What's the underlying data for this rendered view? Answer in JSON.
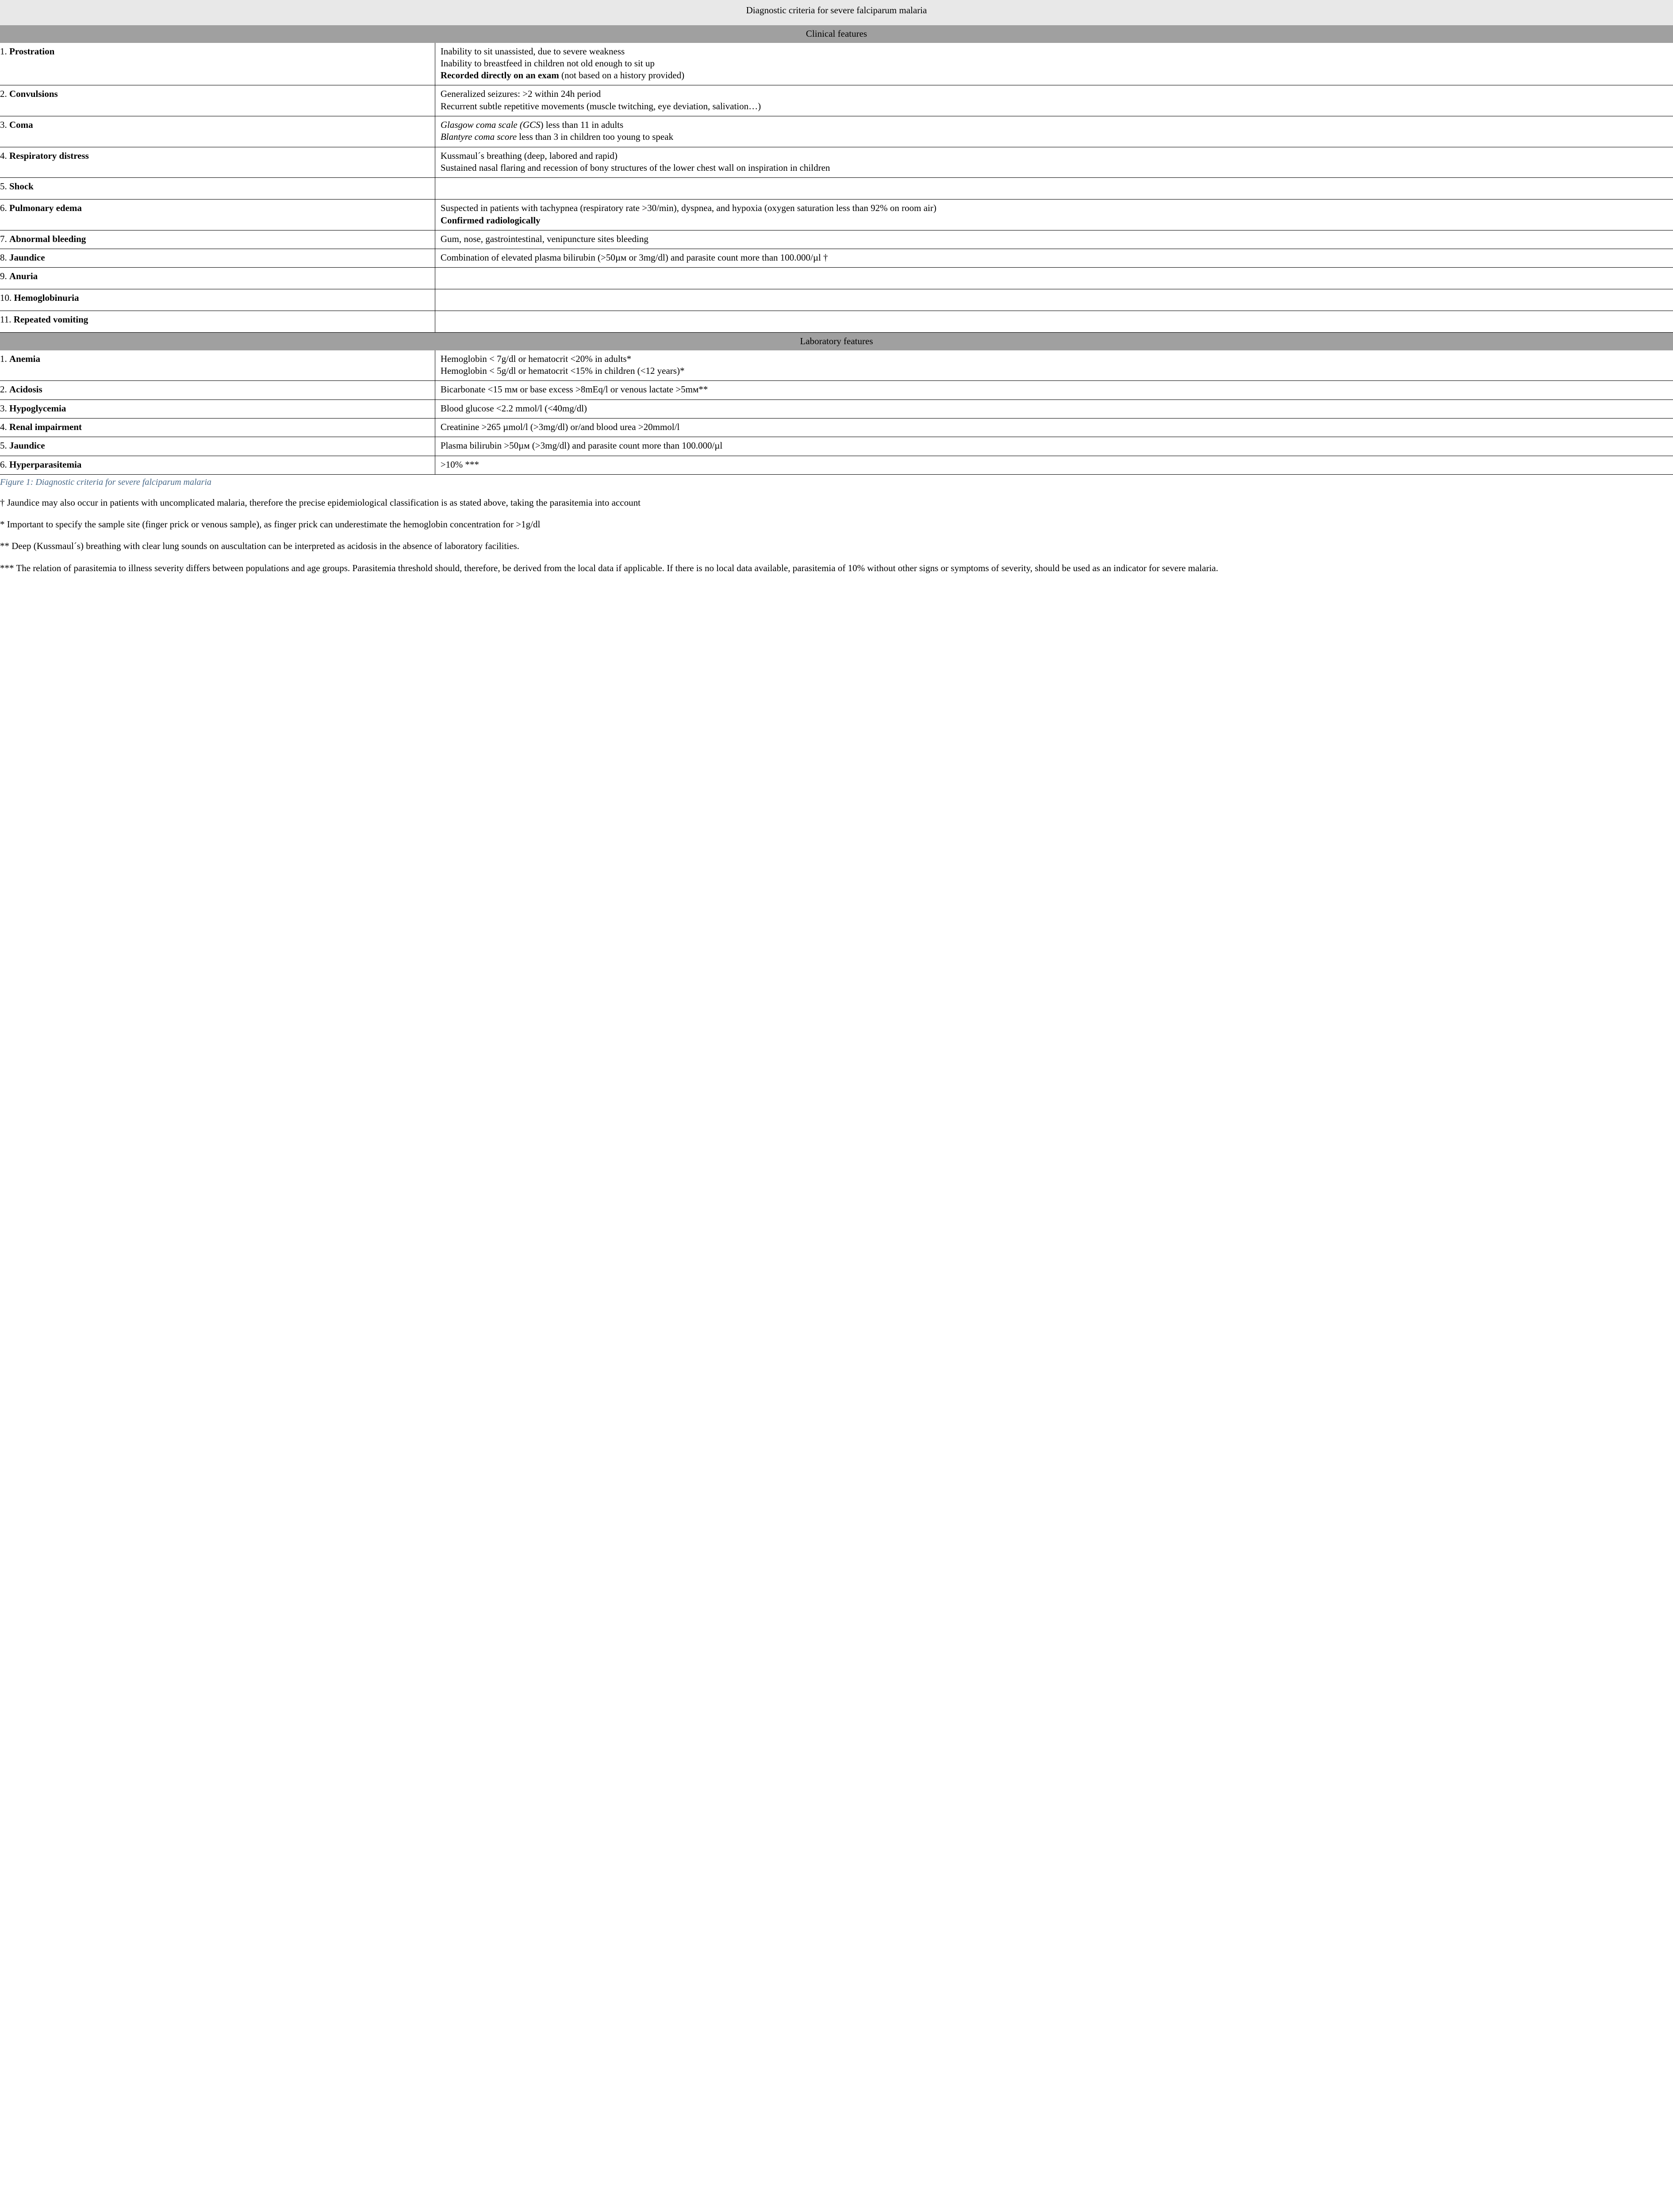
{
  "title": "Diagnostic criteria for severe falciparum malaria",
  "sections": {
    "clinical": {
      "header": "Clinical features",
      "rows": [
        {
          "num": "1.",
          "label": "Prostration",
          "lines": [
            {
              "text": "Inability to sit unassisted, due to severe weakness"
            },
            {
              "text": "Inability to breastfeed in children not old enough to sit up"
            },
            {
              "bold_prefix": "Recorded directly on an exam",
              "rest": " (not based on a history provided)"
            }
          ]
        },
        {
          "num": "2.",
          "label": "Convulsions",
          "lines": [
            {
              "text": "Generalized seizures: >2 within 24h period"
            },
            {
              "text": "Recurrent subtle repetitive movements (muscle twitching, eye deviation, salivation…)"
            }
          ]
        },
        {
          "num": "3.",
          "label": "Coma",
          "lines": [
            {
              "italic_prefix": "Glasgow coma scale (GCS",
              "rest": ") less than 11 in adults"
            },
            {
              "italic_prefix": "Blantyre coma score",
              "rest": " less than 3 in children too young to speak"
            }
          ]
        },
        {
          "num": "4.",
          "label": "Respiratory distress",
          "lines": [
            {
              "text": "Kussmaul´s breathing (deep, labored and rapid)"
            },
            {
              "text": "Sustained nasal flaring and recession of bony structures of the lower chest wall on inspiration in children"
            }
          ]
        },
        {
          "num": "5.",
          "label": "Shock",
          "lines": []
        },
        {
          "num": "6.",
          "label": "Pulmonary edema",
          "lines": [
            {
              "text": "Suspected in patients with tachypnea (respiratory rate >30/min), dyspnea, and hypoxia (oxygen saturation less than 92% on room air)"
            },
            {
              "bold_prefix": "Confirmed radiologically",
              "rest": ""
            }
          ]
        },
        {
          "num": "7.",
          "label": "Abnormal bleeding",
          "lines": [
            {
              "text": "Gum, nose, gastrointestinal, venipuncture sites bleeding"
            }
          ]
        },
        {
          "num": "8.",
          "label": "Jaundice",
          "lines": [
            {
              "text": "Combination of elevated plasma bilirubin (>50µм or 3mg/dl) and parasite count more than 100.000/µl †"
            }
          ]
        },
        {
          "num": "9.",
          "label": "Anuria",
          "lines": []
        },
        {
          "num": "10.",
          "label": "Hemoglobinuria",
          "lines": []
        },
        {
          "num": "11.",
          "label": "Repeated vomiting",
          "lines": []
        }
      ]
    },
    "laboratory": {
      "header": "Laboratory features",
      "rows": [
        {
          "num": "1.",
          "label": "Anemia",
          "lines": [
            {
              "text": "Hemoglobin < 7g/dl or hematocrit <20%  in adults*"
            },
            {
              "text": "Hemoglobin < 5g/dl or hematocrit <15% in children (<12 years)*"
            }
          ]
        },
        {
          "num": "2.",
          "label": "Acidosis",
          "lines": [
            {
              "text": "Bicarbonate <15 mм or base excess >8mEq/l or venous lactate >5mм**"
            }
          ]
        },
        {
          "num": "3.",
          "label": "Hypoglycemia",
          "lines": [
            {
              "text": "Blood glucose <2.2 mmol/l (<40mg/dl)"
            }
          ]
        },
        {
          "num": "4.",
          "label": "Renal impairment",
          "lines": [
            {
              "text": "Creatinine >265 µmol/l (>3mg/dl) or/and blood urea >20mmol/l"
            }
          ]
        },
        {
          "num": "5.",
          "label": "Jaundice",
          "lines": [
            {
              "text": "Plasma bilirubin >50µм (>3mg/dl) and parasite count more than 100.000/µl"
            }
          ]
        },
        {
          "num": "6.",
          "label": "Hyperparasitemia",
          "lines": [
            {
              "text": ">10% ***"
            }
          ]
        }
      ]
    }
  },
  "caption": "Figure 1: Diagnostic criteria for severe falciparum malaria",
  "footnotes": [
    "† Jaundice may also occur in patients with uncomplicated malaria, therefore the precise epidemiological classification is as stated above, taking the parasitemia into account",
    "* Important to specify the sample site (finger prick or venous sample), as finger prick can underestimate the hemoglobin concentration for >1g/dl",
    "** Deep (Kussmaul´s) breathing with clear lung sounds on auscultation can be interpreted as acidosis in the absence of laboratory facilities.",
    "*** The relation of parasitemia to illness severity differs between populations and age groups. Parasitemia threshold should, therefore, be derived from the local data if applicable. If there is no local data available, parasitemia of 10% without other signs or symptoms of severity, should be used as an indicator for severe malaria."
  ],
  "colors": {
    "title_bg": "#e8e8e8",
    "section_bg": "#a0a0a0",
    "caption_color": "#4a6a8a",
    "border_color": "#000000",
    "text_color": "#000000",
    "background": "#ffffff"
  },
  "typography": {
    "font_family": "Times New Roman",
    "body_fontsize_pt": 16,
    "caption_fontsize_pt": 15
  },
  "layout": {
    "label_col_width_pct": 26
  }
}
